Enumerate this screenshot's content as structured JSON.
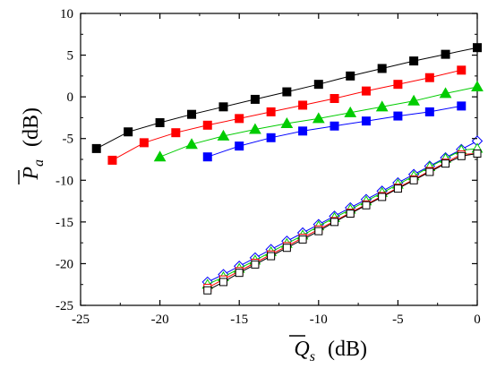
{
  "chart_data": {
    "type": "line",
    "xlabel": {
      "symbol": "Q",
      "subscript": "s",
      "unit": "(dB)"
    },
    "ylabel": {
      "symbol": "P",
      "subscript": "a",
      "unit": "(dB)"
    },
    "xlim": [
      -25,
      0
    ],
    "ylim": [
      -25,
      10
    ],
    "x_ticks": [
      -25,
      -20,
      -15,
      -10,
      -5,
      0
    ],
    "x_tick_labels": [
      "-25",
      "-20",
      "-15",
      "-10",
      "-5",
      "0"
    ],
    "y_ticks": [
      -25,
      -20,
      -15,
      -10,
      -5,
      0,
      5,
      10
    ],
    "y_tick_labels": [
      "-25",
      "-20",
      "-15",
      "-10",
      "-5",
      "0",
      "5",
      "10"
    ],
    "grid": false,
    "legend": "none",
    "series": [
      {
        "color": "#000000",
        "marker": "square",
        "filled": true,
        "x": [
          -24,
          -22,
          -20,
          -18,
          -16,
          -14,
          -12,
          -10,
          -8,
          -6,
          -4,
          -2,
          0
        ],
        "y": [
          -6.2,
          -4.2,
          -3.1,
          -2.1,
          -1.2,
          -0.3,
          0.6,
          1.5,
          2.5,
          3.4,
          4.3,
          5.1,
          5.9
        ]
      },
      {
        "color": "#ff0000",
        "marker": "square",
        "filled": true,
        "x": [
          -23,
          -21,
          -19,
          -17,
          -15,
          -13,
          -11,
          -9,
          -7,
          -5,
          -3,
          -1
        ],
        "y": [
          -7.6,
          -5.5,
          -4.3,
          -3.4,
          -2.6,
          -1.8,
          -1.0,
          -0.2,
          0.7,
          1.5,
          2.3,
          3.2
        ]
      },
      {
        "color": "#00cc00",
        "marker": "triangle",
        "filled": true,
        "x": [
          -20,
          -18,
          -16,
          -14,
          -12,
          -10,
          -8,
          -6,
          -4,
          -2,
          0
        ],
        "y": [
          -7.2,
          -5.7,
          -4.7,
          -3.9,
          -3.2,
          -2.6,
          -1.9,
          -1.2,
          -0.5,
          0.4,
          1.2
        ]
      },
      {
        "color": "#0000ff",
        "marker": "square",
        "filled": true,
        "x": [
          -17,
          -15,
          -13,
          -11,
          -9,
          -7,
          -5,
          -3,
          -1
        ],
        "y": [
          -7.2,
          -5.9,
          -4.9,
          -4.1,
          -3.5,
          -2.9,
          -2.3,
          -1.8,
          -1.1
        ]
      },
      {
        "color": "#0000ff",
        "marker": "diamond",
        "filled": false,
        "x": [
          -17,
          -16,
          -15,
          -14,
          -13,
          -12,
          -11,
          -10,
          -9,
          -8,
          -7,
          -6,
          -5,
          -4,
          -3,
          -2,
          -1,
          0
        ],
        "y": [
          -22.2,
          -21.3,
          -20.3,
          -19.3,
          -18.3,
          -17.3,
          -16.3,
          -15.3,
          -14.3,
          -13.3,
          -12.3,
          -11.3,
          -10.3,
          -9.3,
          -8.3,
          -7.3,
          -6.3,
          -5.3
        ]
      },
      {
        "color": "#00cc00",
        "marker": "triangle",
        "filled": false,
        "x": [
          -17,
          -16,
          -15,
          -14,
          -13,
          -12,
          -11,
          -10,
          -9,
          -8,
          -7,
          -6,
          -5,
          -4,
          -3,
          -2,
          -1,
          0
        ],
        "y": [
          -22.5,
          -21.6,
          -20.6,
          -19.6,
          -18.6,
          -17.6,
          -16.6,
          -15.5,
          -14.5,
          -13.5,
          -12.5,
          -11.5,
          -10.5,
          -9.5,
          -8.4,
          -7.4,
          -6.4,
          -6.2
        ]
      },
      {
        "color": "#ff0000",
        "marker": "square",
        "filled": false,
        "x": [
          -17,
          -16,
          -15,
          -14,
          -13,
          -12,
          -11,
          -10,
          -9,
          -8,
          -7,
          -6,
          -5,
          -4,
          -3,
          -2,
          -1,
          0
        ],
        "y": [
          -22.9,
          -21.9,
          -20.9,
          -19.9,
          -18.9,
          -17.9,
          -16.9,
          -15.9,
          -14.9,
          -13.9,
          -12.9,
          -11.9,
          -10.9,
          -9.9,
          -8.9,
          -7.9,
          -6.9,
          -6.8
        ]
      },
      {
        "color": "#000000",
        "marker": "square",
        "filled": false,
        "x": [
          -17,
          -16,
          -15,
          -14,
          -13,
          -12,
          -11,
          -10,
          -9,
          -8,
          -7,
          -6,
          -5,
          -4,
          -3,
          -2,
          -1,
          0
        ],
        "y": [
          -23.2,
          -22.2,
          -21.1,
          -20.1,
          -19.1,
          -18.1,
          -17.1,
          -16.1,
          -15.0,
          -14.0,
          -13.0,
          -12.0,
          -11.0,
          -10.0,
          -9.0,
          -8.0,
          -7.1,
          -6.8
        ]
      }
    ]
  }
}
